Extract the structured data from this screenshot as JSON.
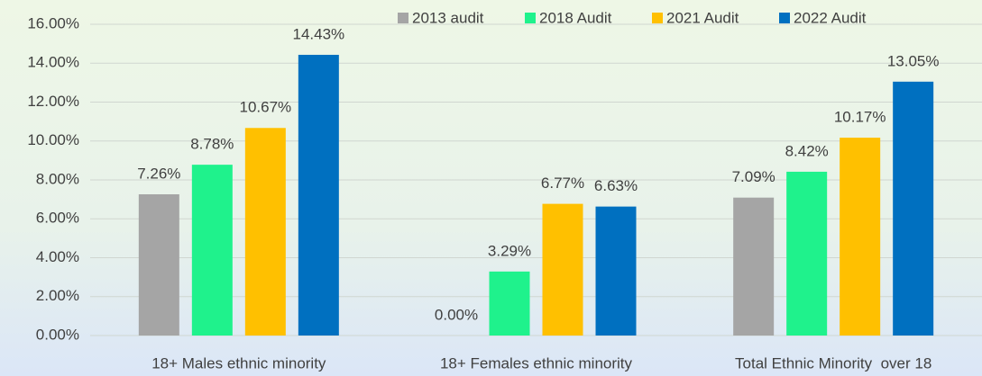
{
  "chart_data": {
    "type": "bar",
    "categories": [
      "18+ Males ethnic minority",
      "18+ Females ethnic minority",
      "Total Ethnic Minority  over 18"
    ],
    "series": [
      {
        "name": "2013 audit",
        "color": "#a5a5a5",
        "values": [
          7.26,
          0,
          7.09
        ],
        "value_labels": [
          "7.26%",
          "0.00%",
          "7.09%"
        ]
      },
      {
        "name": "2018 Audit",
        "color": "#1ff28c",
        "values": [
          8.78,
          3.29,
          8.42
        ],
        "value_labels": [
          "8.78%",
          "3.29%",
          "8.42%"
        ]
      },
      {
        "name": "2021 Audit",
        "color": "#ffc000",
        "values": [
          10.67,
          6.77,
          10.17
        ],
        "value_labels": [
          "10.67%",
          "6.77%",
          "10.17%"
        ]
      },
      {
        "name": "2022 Audit",
        "color": "#0070c0",
        "values": [
          14.43,
          6.63,
          13.05
        ],
        "value_labels": [
          "14.43%",
          "6.63%",
          "13.05%"
        ]
      }
    ],
    "ylim": [
      0,
      16
    ],
    "yticks": [
      {
        "value": 0,
        "label": "0.00%"
      },
      {
        "value": 2,
        "label": "2.00%"
      },
      {
        "value": 4,
        "label": "4.00%"
      },
      {
        "value": 6,
        "label": "6.00%"
      },
      {
        "value": 8,
        "label": "8.00%"
      },
      {
        "value": 10,
        "label": "10.00%"
      },
      {
        "value": 12,
        "label": "12.00%"
      },
      {
        "value": 14,
        "label": "14.00%"
      },
      {
        "value": 16,
        "label": "16.00%"
      }
    ],
    "grid": true,
    "legend": "top"
  }
}
